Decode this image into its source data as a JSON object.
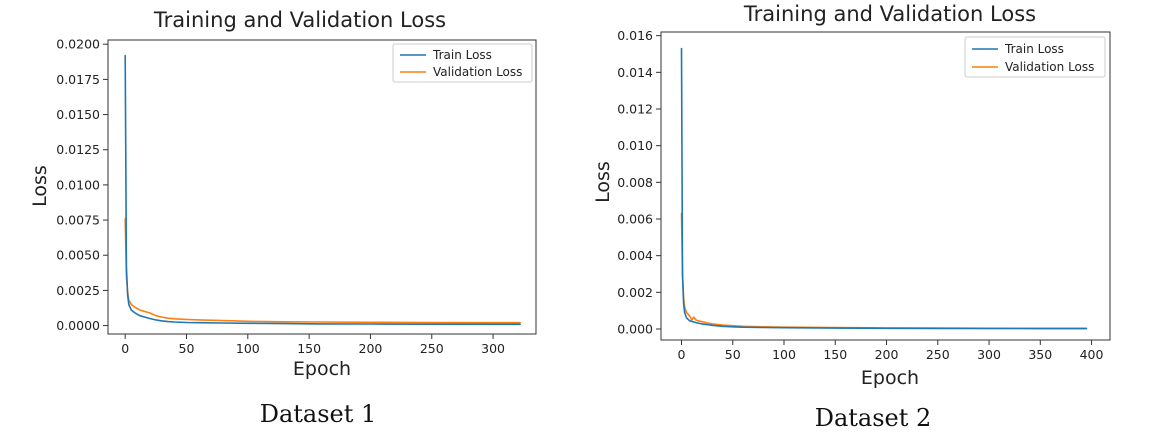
{
  "colors": {
    "train": "#1f77b4",
    "validation": "#ff7f0e",
    "axis": "#333333"
  },
  "chart_data": [
    {
      "type": "line",
      "title": "Training and Validation Loss",
      "caption": "Dataset 1",
      "xlabel": "Epoch",
      "ylabel": "Loss",
      "xlim": [
        -14,
        335
      ],
      "ylim": [
        -0.0006,
        0.0203
      ],
      "xticks": [
        0,
        50,
        100,
        150,
        200,
        250,
        300
      ],
      "xtick_labels": [
        "0",
        "50",
        "100",
        "150",
        "200",
        "250",
        "300"
      ],
      "yticks": [
        0,
        0.0025,
        0.005,
        0.0075,
        0.01,
        0.0125,
        0.015,
        0.0175,
        0.02
      ],
      "ytick_labels": [
        "0.0000",
        "0.0025",
        "0.0050",
        "0.0075",
        "0.0100",
        "0.0125",
        "0.0150",
        "0.0175",
        "0.0200"
      ],
      "legend": {
        "position": "top-right",
        "entries": [
          "Train Loss",
          "Validation Loss"
        ]
      },
      "series": [
        {
          "name": "Train Loss",
          "x": [
            0,
            1,
            2,
            3,
            5,
            8,
            12,
            16,
            20,
            25,
            30,
            35,
            40,
            50,
            60,
            80,
            100,
            130,
            160,
            200,
            250,
            300,
            322
          ],
          "y": [
            0.0192,
            0.0042,
            0.0022,
            0.0015,
            0.0011,
            0.0009,
            0.0007,
            0.0006,
            0.0005,
            0.0004,
            0.00033,
            0.00028,
            0.00025,
            0.00022,
            0.0002,
            0.00018,
            0.00016,
            0.00014,
            0.00012,
            0.00011,
            0.0001,
            9e-05,
            9e-05
          ]
        },
        {
          "name": "Validation Loss",
          "x": [
            0,
            1,
            2,
            3,
            5,
            8,
            12,
            16,
            20,
            25,
            30,
            35,
            40,
            50,
            60,
            80,
            100,
            130,
            160,
            200,
            250,
            300,
            322
          ],
          "y": [
            0.0076,
            0.0035,
            0.0024,
            0.0018,
            0.0015,
            0.0013,
            0.0011,
            0.001,
            0.0009,
            0.0007,
            0.0006,
            0.00052,
            0.00048,
            0.00044,
            0.0004,
            0.00035,
            0.0003,
            0.00027,
            0.00025,
            0.00023,
            0.00021,
            0.0002,
            0.0002
          ]
        }
      ]
    },
    {
      "type": "line",
      "title": "Training and Validation Loss",
      "caption": "Dataset 2",
      "xlabel": "Epoch",
      "ylabel": "Loss",
      "xlim": [
        -20,
        418
      ],
      "ylim": [
        -0.0006,
        0.0162
      ],
      "xticks": [
        0,
        50,
        100,
        150,
        200,
        250,
        300,
        350,
        400
      ],
      "xtick_labels": [
        "0",
        "50",
        "100",
        "150",
        "200",
        "250",
        "300",
        "350",
        "400"
      ],
      "yticks": [
        0,
        0.002,
        0.004,
        0.006,
        0.008,
        0.01,
        0.012,
        0.014,
        0.016
      ],
      "ytick_labels": [
        "0.000",
        "0.002",
        "0.004",
        "0.006",
        "0.008",
        "0.010",
        "0.012",
        "0.014",
        "0.016"
      ],
      "legend": {
        "position": "top-right",
        "entries": [
          "Train Loss",
          "Validation Loss"
        ]
      },
      "series": [
        {
          "name": "Train Loss",
          "x": [
            0,
            1,
            2,
            3,
            5,
            8,
            12,
            16,
            20,
            25,
            30,
            40,
            50,
            60,
            80,
            100,
            150,
            200,
            250,
            300,
            350,
            395
          ],
          "y": [
            0.0153,
            0.003,
            0.0014,
            0.0009,
            0.0006,
            0.00045,
            0.00038,
            0.00032,
            0.00028,
            0.00024,
            0.0002,
            0.00015,
            0.00012,
            0.0001,
            8e-05,
            7e-05,
            5e-05,
            4e-05,
            3e-05,
            3e-05,
            2e-05,
            2e-05
          ]
        },
        {
          "name": "Validation Loss",
          "x": [
            0,
            1,
            2,
            3,
            5,
            8,
            10,
            12,
            14,
            16,
            20,
            25,
            30,
            40,
            50,
            60,
            80,
            100,
            150,
            200,
            250,
            300,
            350,
            395
          ],
          "y": [
            0.0063,
            0.003,
            0.0017,
            0.0012,
            0.0009,
            0.0007,
            0.0005,
            0.00065,
            0.0005,
            0.00045,
            0.0004,
            0.00033,
            0.00028,
            0.00022,
            0.00018,
            0.00015,
            0.00012,
            0.0001,
            8e-05,
            6e-05,
            5e-05,
            4e-05,
            4e-05,
            4e-05
          ]
        }
      ]
    }
  ]
}
